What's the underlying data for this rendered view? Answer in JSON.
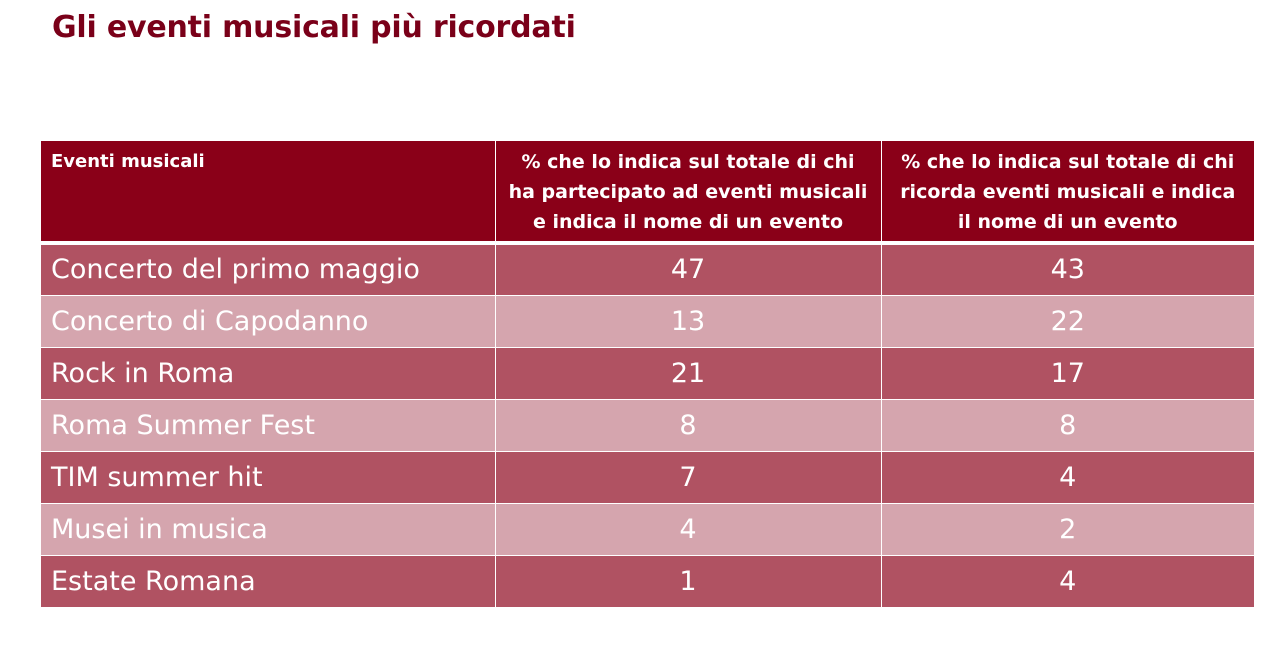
{
  "title": "Gli eventi musicali più ricordati",
  "table": {
    "headers": [
      "Eventi musicali",
      "% che lo indica sul totale di chi ha partecipato ad eventi musicali e indica il nome di un evento",
      "% che lo indica sul totale di chi ricorda eventi musicali e indica il nome di un evento"
    ],
    "rows": [
      {
        "event": "Concerto del primo maggio",
        "participated_pct": "47",
        "remember_pct": "43"
      },
      {
        "event": "Concerto di Capodanno",
        "participated_pct": "13",
        "remember_pct": "22"
      },
      {
        "event": "Rock in Roma",
        "participated_pct": "21",
        "remember_pct": "17"
      },
      {
        "event": "Roma Summer Fest",
        "participated_pct": "8",
        "remember_pct": "8"
      },
      {
        "event": "TIM summer hit",
        "participated_pct": "7",
        "remember_pct": "4"
      },
      {
        "event": "Musei in musica",
        "participated_pct": "4",
        "remember_pct": "2"
      },
      {
        "event": "Estate Romana",
        "participated_pct": "1",
        "remember_pct": "4"
      }
    ]
  },
  "colors": {
    "title": "#7a0019",
    "header_bg": "#8a0018",
    "row_dark": "#b05262",
    "row_light": "#d5a5ae"
  }
}
